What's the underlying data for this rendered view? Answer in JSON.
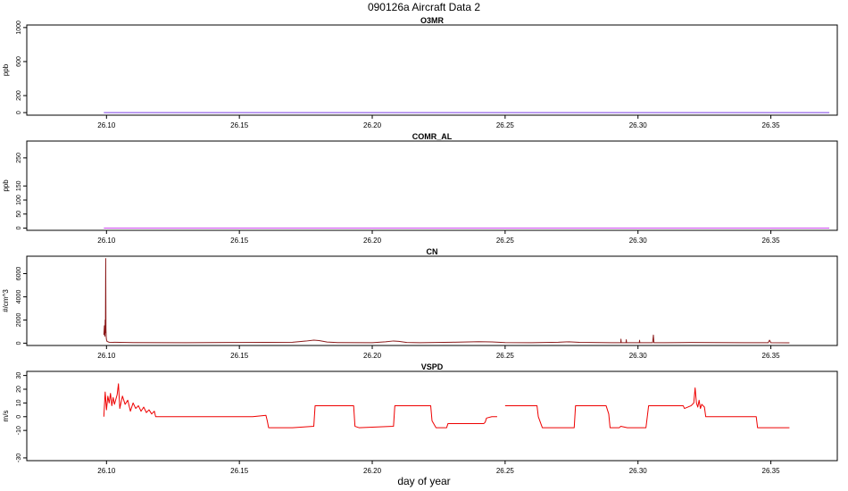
{
  "figure": {
    "title": "090126a   Aircraft Data 2",
    "xlabel": "day of year"
  },
  "colors": {
    "purple": "#8a2be2",
    "dark_red": "#8b1a1a",
    "red": "#ee0000",
    "axis": "#000000"
  },
  "chart_data": [
    {
      "type": "line",
      "title": "O3MR",
      "ylabel": "ppb",
      "xlim": [
        26.07,
        26.375
      ],
      "ylim": [
        -30,
        1030
      ],
      "yticks": [
        0,
        200,
        600,
        1000
      ],
      "xticks": [
        26.1,
        26.15,
        26.2,
        26.25,
        26.3,
        26.35
      ],
      "xticklabels": [
        "26.10",
        "26.15",
        "26.20",
        "26.25",
        "26.30",
        "26.35"
      ],
      "series": [
        {
          "color": "#7b3fe4",
          "x": [
            26.099,
            26.372
          ],
          "y": [
            0,
            0
          ]
        }
      ]
    },
    {
      "type": "line",
      "title": "COMR_AL",
      "ylabel": "ppb",
      "xlim": [
        26.07,
        26.375
      ],
      "ylim": [
        -8,
        310
      ],
      "yticks": [
        0,
        50,
        100,
        150,
        250
      ],
      "xticks": [
        26.1,
        26.15,
        26.2,
        26.25,
        26.3,
        26.35
      ],
      "xticklabels": [
        "26.10",
        "26.15",
        "26.20",
        "26.25",
        "26.30",
        "26.35"
      ],
      "series": [
        {
          "color": "#cc44ee",
          "x": [
            26.099,
            26.372
          ],
          "y": [
            0,
            0
          ]
        }
      ]
    },
    {
      "type": "line",
      "title": "CN",
      "ylabel": "#/cm^3",
      "xlim": [
        26.07,
        26.375
      ],
      "ylim": [
        -200,
        7500
      ],
      "yticks": [
        0,
        2000,
        4000,
        6000
      ],
      "xticks": [
        26.1,
        26.15,
        26.2,
        26.25,
        26.3,
        26.35
      ],
      "xticklabels": [
        "26.10",
        "26.15",
        "26.20",
        "26.25",
        "26.30",
        "26.35"
      ],
      "series": [
        {
          "color": "#8b1a1a",
          "x": [
            26.099,
            26.0992,
            26.0994,
            26.0995,
            26.0996,
            26.0997,
            26.0998,
            26.0999,
            26.1,
            26.1002,
            26.101,
            26.11,
            26.13,
            26.15,
            26.17,
            26.175,
            26.178,
            26.18,
            26.183,
            26.187,
            26.2,
            26.205,
            26.208,
            26.21,
            26.213,
            26.218,
            26.23,
            26.24,
            26.245,
            26.25,
            26.26,
            26.27,
            26.274,
            26.278,
            26.29,
            26.2935,
            26.2936,
            26.2937,
            26.2955,
            26.2956,
            26.2957,
            26.3,
            26.3005,
            26.3006,
            26.3007,
            26.3055,
            26.3058,
            26.306,
            26.31,
            26.32,
            26.34,
            26.349,
            26.3495,
            26.35,
            26.357
          ],
          "y": [
            700,
            1500,
            600,
            2000,
            900,
            7300,
            1200,
            500,
            300,
            150,
            80,
            50,
            40,
            60,
            80,
            180,
            260,
            220,
            100,
            50,
            40,
            120,
            190,
            160,
            60,
            40,
            80,
            130,
            110,
            50,
            40,
            80,
            120,
            70,
            40,
            40,
            350,
            40,
            40,
            300,
            40,
            40,
            40,
            250,
            40,
            40,
            700,
            40,
            40,
            60,
            40,
            40,
            260,
            40,
            30
          ]
        }
      ]
    },
    {
      "type": "line",
      "title": "VSPD",
      "ylabel": "m/s",
      "xlim": [
        26.07,
        26.375
      ],
      "ylim": [
        -32,
        33
      ],
      "yticks": [
        -30,
        -10,
        0,
        10,
        20,
        30
      ],
      "xticks": [
        26.1,
        26.15,
        26.2,
        26.25,
        26.3,
        26.35
      ],
      "xticklabels": [
        "26.10",
        "26.15",
        "26.20",
        "26.25",
        "26.30",
        "26.35"
      ],
      "series": [
        {
          "color": "#ee0000",
          "x": [
            26.099,
            26.0995,
            26.1,
            26.1005,
            26.101,
            26.1015,
            26.102,
            26.1025,
            26.103,
            26.104,
            26.1045,
            26.105,
            26.106,
            26.107,
            26.108,
            26.109,
            26.11,
            26.111,
            26.112,
            26.113,
            26.114,
            26.115,
            26.116,
            26.117,
            26.118,
            26.1185,
            26.125,
            26.135,
            26.14,
            26.145,
            26.15,
            26.155,
            26.16,
            26.1605,
            26.161,
            26.17,
            26.178,
            26.1785,
            26.18,
            26.193,
            26.1935,
            26.195,
            26.208,
            26.2085,
            26.21,
            26.222,
            26.2225,
            26.224,
            26.228,
            26.2285,
            26.23,
            26.242,
            26.2425,
            26.243,
            26.245,
            26.247
          ],
          "y": [
            0,
            18,
            5,
            15,
            10,
            17,
            8,
            14,
            9,
            16,
            24,
            6,
            15,
            9,
            12,
            4,
            10,
            6,
            8,
            4,
            7,
            3,
            5,
            2,
            4,
            0,
            0,
            0,
            0,
            0,
            0,
            0,
            1,
            -3,
            -8,
            -8,
            -7,
            8,
            8,
            8,
            -7,
            -8,
            -7,
            8,
            8,
            8,
            -3,
            -8,
            -8,
            -5,
            -5,
            -5,
            -4,
            -1,
            0,
            0
          ]
        },
        {
          "color": "#ee0000",
          "x": [
            26.25,
            26.262,
            26.2625,
            26.264,
            26.276,
            26.2765,
            26.288,
            26.289,
            26.2895,
            26.293,
            26.2935,
            26.296,
            26.303,
            26.3035,
            26.304,
            26.317,
            26.3175,
            26.32,
            26.321,
            26.3215,
            26.322,
            26.3225,
            26.323,
            26.3235,
            26.324,
            26.325,
            26.3255,
            26.33,
            26.3445,
            26.345,
            26.357
          ],
          "y": [
            8,
            8,
            0,
            -8,
            -8,
            8,
            8,
            2,
            -8,
            -8,
            -7,
            -8,
            -8,
            0,
            8,
            8,
            6,
            8,
            10,
            21,
            10,
            7,
            12,
            6,
            9,
            7,
            0,
            0,
            0,
            -8,
            -8
          ]
        }
      ]
    }
  ]
}
